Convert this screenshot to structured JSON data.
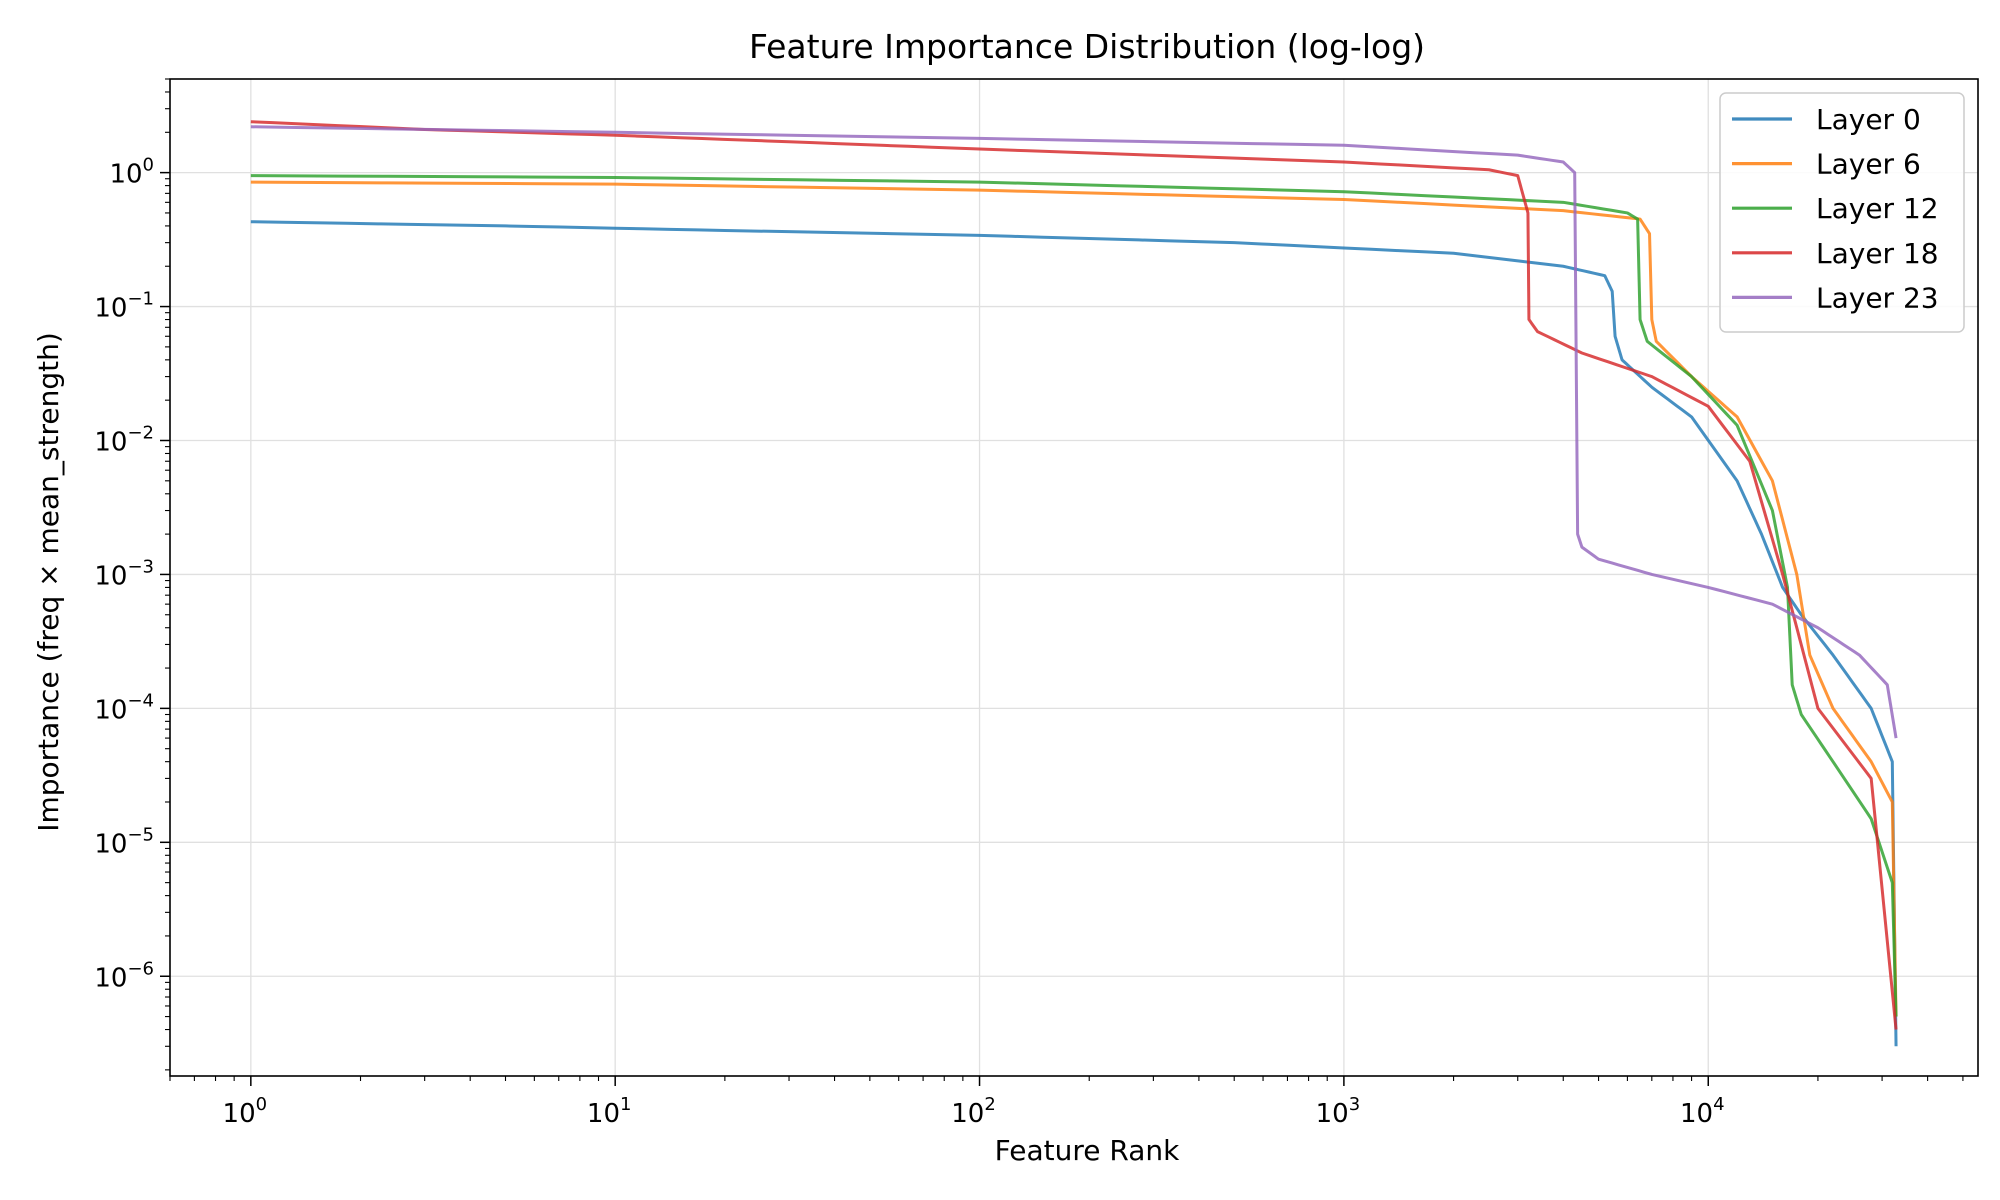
{
  "chart_data": {
    "type": "line",
    "title": "Feature Importance Distribution (log-log)",
    "xlabel": "Feature Rank",
    "ylabel": "Importance (freq × mean_strength)",
    "xscale": "log",
    "yscale": "log",
    "xlim": [
      0.6,
      55000
    ],
    "ylim": [
      1.8e-07,
      5.0
    ],
    "x_ticks": [
      {
        "value": 1,
        "mantissa": "10",
        "exp": "0"
      },
      {
        "value": 10,
        "mantissa": "10",
        "exp": "1"
      },
      {
        "value": 100,
        "mantissa": "10",
        "exp": "2"
      },
      {
        "value": 1000,
        "mantissa": "10",
        "exp": "3"
      },
      {
        "value": 10000,
        "mantissa": "10",
        "exp": "4"
      }
    ],
    "y_ticks": [
      {
        "value": 1,
        "mantissa": "10",
        "exp": "0"
      },
      {
        "value": 0.1,
        "mantissa": "10",
        "exp": "−1"
      },
      {
        "value": 0.01,
        "mantissa": "10",
        "exp": "−2"
      },
      {
        "value": 0.001,
        "mantissa": "10",
        "exp": "−3"
      },
      {
        "value": 0.0001,
        "mantissa": "10",
        "exp": "−4"
      },
      {
        "value": 1e-05,
        "mantissa": "10",
        "exp": "−5"
      },
      {
        "value": 1e-06,
        "mantissa": "10",
        "exp": "−6"
      }
    ],
    "grid": true,
    "legend_position": "top-right",
    "series": [
      {
        "name": "Layer 0",
        "color": "#1f77b4",
        "points": [
          [
            1,
            0.43
          ],
          [
            5,
            0.4
          ],
          [
            20,
            0.37
          ],
          [
            100,
            0.34
          ],
          [
            500,
            0.3
          ],
          [
            2000,
            0.25
          ],
          [
            4000,
            0.2
          ],
          [
            5200,
            0.17
          ],
          [
            5450,
            0.13
          ],
          [
            5550,
            0.06
          ],
          [
            5800,
            0.04
          ],
          [
            7000,
            0.025
          ],
          [
            9000,
            0.015
          ],
          [
            12000,
            0.005
          ],
          [
            14000,
            0.002
          ],
          [
            16000,
            0.0008
          ],
          [
            18000,
            0.0005
          ],
          [
            22000,
            0.00025
          ],
          [
            28000,
            0.0001
          ],
          [
            32000,
            4e-05
          ],
          [
            32768,
            3e-07
          ]
        ]
      },
      {
        "name": "Layer 6",
        "color": "#ff7f0e",
        "points": [
          [
            1,
            0.85
          ],
          [
            10,
            0.82
          ],
          [
            100,
            0.74
          ],
          [
            1000,
            0.63
          ],
          [
            4000,
            0.52
          ],
          [
            6500,
            0.45
          ],
          [
            6900,
            0.35
          ],
          [
            7000,
            0.08
          ],
          [
            7200,
            0.055
          ],
          [
            9000,
            0.03
          ],
          [
            12000,
            0.015
          ],
          [
            15000,
            0.005
          ],
          [
            17500,
            0.001
          ],
          [
            19000,
            0.00025
          ],
          [
            22000,
            0.0001
          ],
          [
            28000,
            4e-05
          ],
          [
            32000,
            2e-05
          ],
          [
            32768,
            5e-07
          ]
        ]
      },
      {
        "name": "Layer 12",
        "color": "#2ca02c",
        "points": [
          [
            1,
            0.95
          ],
          [
            10,
            0.92
          ],
          [
            100,
            0.85
          ],
          [
            1000,
            0.72
          ],
          [
            4000,
            0.6
          ],
          [
            6000,
            0.5
          ],
          [
            6400,
            0.45
          ],
          [
            6500,
            0.08
          ],
          [
            6800,
            0.055
          ],
          [
            9000,
            0.03
          ],
          [
            12000,
            0.013
          ],
          [
            15000,
            0.003
          ],
          [
            16500,
            0.0008
          ],
          [
            17000,
            0.00015
          ],
          [
            18000,
            9e-05
          ],
          [
            22000,
            4e-05
          ],
          [
            28000,
            1.5e-05
          ],
          [
            32000,
            5e-06
          ],
          [
            32768,
            5e-07
          ]
        ]
      },
      {
        "name": "Layer 18",
        "color": "#d62728",
        "points": [
          [
            1,
            2.4
          ],
          [
            3,
            2.1
          ],
          [
            10,
            1.9
          ],
          [
            30,
            1.7
          ],
          [
            100,
            1.5
          ],
          [
            1000,
            1.2
          ],
          [
            2500,
            1.05
          ],
          [
            3000,
            0.95
          ],
          [
            3200,
            0.5
          ],
          [
            3220,
            0.08
          ],
          [
            3400,
            0.065
          ],
          [
            4500,
            0.045
          ],
          [
            7000,
            0.03
          ],
          [
            10000,
            0.018
          ],
          [
            13000,
            0.007
          ],
          [
            16000,
            0.001
          ],
          [
            17500,
            0.0004
          ],
          [
            20000,
            0.0001
          ],
          [
            28000,
            3e-05
          ],
          [
            32768,
            4e-07
          ]
        ]
      },
      {
        "name": "Layer 23",
        "color": "#9467bd",
        "points": [
          [
            1,
            2.2
          ],
          [
            10,
            2.0
          ],
          [
            100,
            1.8
          ],
          [
            1000,
            1.6
          ],
          [
            3000,
            1.35
          ],
          [
            4000,
            1.2
          ],
          [
            4300,
            1.0
          ],
          [
            4380,
            0.002
          ],
          [
            4500,
            0.0016
          ],
          [
            5000,
            0.0013
          ],
          [
            7000,
            0.001
          ],
          [
            10000,
            0.0008
          ],
          [
            15000,
            0.0006
          ],
          [
            20000,
            0.0004
          ],
          [
            26000,
            0.00025
          ],
          [
            31000,
            0.00015
          ],
          [
            32768,
            6e-05
          ]
        ]
      }
    ]
  }
}
